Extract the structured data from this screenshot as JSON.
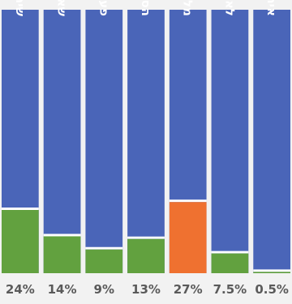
{
  "chart_data": {
    "type": "bar",
    "stacked": true,
    "normalized_to": 100,
    "categories": [
      "שירות צבאי",
      "שאינו קשור בנט\"ל",
      "פעולות איבה",
      "הסלמת המצב בטחוני",
      "מלחמות ומבצעים",
      "לא ידוע",
      "אירוע לאומי"
    ],
    "values": [
      24,
      14,
      9,
      13,
      27,
      7.5,
      0.5
    ],
    "value_labels": [
      "24%",
      "14%",
      "9%",
      "13%",
      "27%",
      "7.5%",
      "0.5%"
    ],
    "colors": {
      "background_bar": "#4a65b8",
      "share": "#62a13f",
      "highlight": "#ef7130",
      "label_text": "#5a5a5a",
      "bar_text": "#ffffff",
      "plot_background": "#f2f2f2"
    },
    "highlight_index": 4,
    "grid": false,
    "legend": "none"
  }
}
